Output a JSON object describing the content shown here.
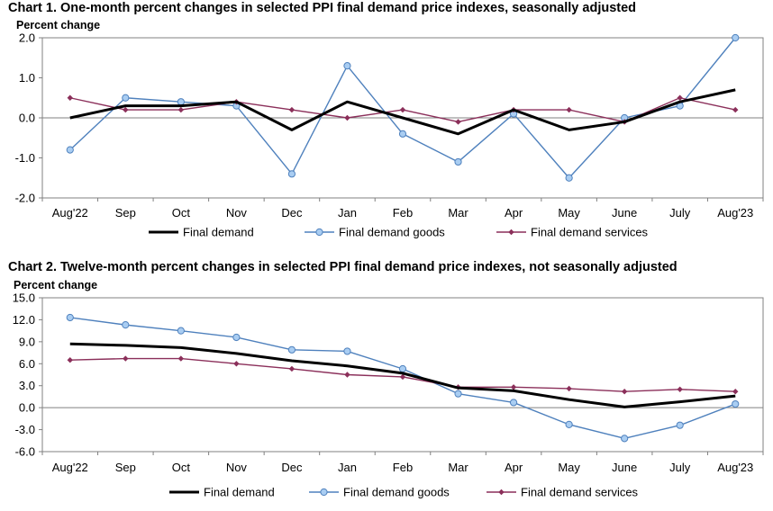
{
  "chart_data": [
    {
      "type": "line",
      "title": "Chart 1. One-month percent changes in selected PPI final demand price indexes, seasonally adjusted",
      "ylabel": "Percent change",
      "xlabel": "",
      "categories": [
        "Aug'22",
        "Sep",
        "Oct",
        "Nov",
        "Dec",
        "Jan",
        "Feb",
        "Mar",
        "Apr",
        "May",
        "June",
        "July",
        "Aug'23"
      ],
      "ylim": [
        -2.0,
        2.0
      ],
      "yticks": [
        2.0,
        1.0,
        0.0,
        -1.0,
        -2.0
      ],
      "ytick_labels": [
        "2.0",
        "1.0",
        "0.0",
        "-1.0",
        "-2.0"
      ],
      "grid": false,
      "legend": "bottom",
      "series": [
        {
          "name": "Final demand",
          "color": "#000000",
          "marker": "none",
          "values": [
            0.0,
            0.3,
            0.3,
            0.4,
            -0.3,
            0.4,
            0.0,
            -0.4,
            0.2,
            -0.3,
            -0.1,
            0.4,
            0.7
          ]
        },
        {
          "name": "Final demand goods",
          "color": "#4f81bd",
          "marker": "circle",
          "values": [
            -0.8,
            0.5,
            0.4,
            0.3,
            -1.4,
            1.3,
            -0.4,
            -1.1,
            0.1,
            -1.5,
            0.0,
            0.3,
            2.0
          ]
        },
        {
          "name": "Final demand services",
          "color": "#8b2f5a",
          "marker": "diamond",
          "values": [
            0.5,
            0.2,
            0.2,
            0.4,
            0.2,
            0.0,
            0.2,
            -0.1,
            0.2,
            0.2,
            -0.1,
            0.5,
            0.2
          ]
        }
      ]
    },
    {
      "type": "line",
      "title": "Chart 2. Twelve-month percent changes in selected PPI final demand price indexes, not seasonally adjusted",
      "ylabel": "Percent change",
      "xlabel": "",
      "categories": [
        "Aug'22",
        "Sep",
        "Oct",
        "Nov",
        "Dec",
        "Jan",
        "Feb",
        "Mar",
        "Apr",
        "May",
        "June",
        "July",
        "Aug'23"
      ],
      "ylim": [
        -6.0,
        15.0
      ],
      "yticks": [
        15.0,
        12.0,
        9.0,
        6.0,
        3.0,
        0.0,
        -3.0,
        -6.0
      ],
      "ytick_labels": [
        "15.0",
        "12.0",
        "9.0",
        "6.0",
        "3.0",
        "0.0",
        "-3.0",
        "-6.0"
      ],
      "grid": false,
      "legend": "bottom",
      "series": [
        {
          "name": "Final demand",
          "color": "#000000",
          "marker": "none",
          "values": [
            8.7,
            8.5,
            8.2,
            7.4,
            6.4,
            5.7,
            4.7,
            2.7,
            2.3,
            1.1,
            0.1,
            0.8,
            1.6
          ]
        },
        {
          "name": "Final demand goods",
          "color": "#4f81bd",
          "marker": "circle",
          "values": [
            12.3,
            11.3,
            10.5,
            9.6,
            7.9,
            7.7,
            5.3,
            1.9,
            0.7,
            -2.3,
            -4.2,
            -2.4,
            0.5
          ]
        },
        {
          "name": "Final demand services",
          "color": "#8b2f5a",
          "marker": "diamond",
          "values": [
            6.5,
            6.7,
            6.7,
            6.0,
            5.3,
            4.5,
            4.2,
            2.8,
            2.8,
            2.6,
            2.2,
            2.5,
            2.2
          ]
        }
      ]
    }
  ]
}
